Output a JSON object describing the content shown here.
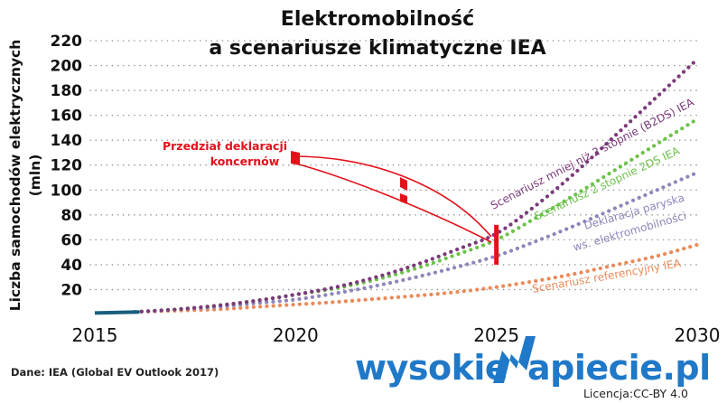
{
  "chart_data": {
    "type": "line",
    "title": [
      "Elektromobilność",
      "a scenariusze klimatyczne IEA"
    ],
    "ylabel": [
      "Liczba samochodów elektrycznych",
      "(mln)"
    ],
    "xlabel": "",
    "xlim": [
      2015,
      2030
    ],
    "ylim": [
      0,
      220
    ],
    "x_ticks": [
      2015,
      2020,
      2025,
      2030
    ],
    "y_ticks": [
      20,
      40,
      60,
      80,
      100,
      120,
      140,
      160,
      180,
      200,
      220
    ],
    "grid": true,
    "x": [
      2016,
      2017,
      2018,
      2019,
      2020,
      2021,
      2022,
      2023,
      2024,
      2025,
      2026,
      2027,
      2028,
      2029,
      2030
    ],
    "historical": {
      "x": [
        2015,
        2016
      ],
      "values": [
        1.2,
        2
      ],
      "color": "#1a5e7e"
    },
    "series": [
      {
        "label": "Scenariusz mniej niż 2 stopnie (B2DS) IEA",
        "color": "#7b3a7a",
        "values": [
          2,
          4,
          7,
          11,
          16,
          22,
          30,
          40,
          52,
          65,
          88,
          115,
          145,
          175,
          205
        ]
      },
      {
        "label": "Scenariusz 2 stopnie 2DS IEA",
        "color": "#6dc24a",
        "values": [
          2,
          4,
          7,
          11,
          16,
          21,
          28,
          37,
          48,
          60,
          78,
          97,
          117,
          137,
          157
        ]
      },
      {
        "label": [
          "Deklaracja paryska",
          "ws. elektromobilności"
        ],
        "color": "#8e86b8",
        "values": [
          2,
          4,
          6,
          9,
          12,
          17,
          23,
          30,
          38,
          47,
          59,
          72,
          86,
          100,
          114
        ]
      },
      {
        "label": "Scenariusz referencyjny IEA",
        "color": "#e88a5a",
        "values": [
          2,
          3,
          4,
          6,
          8,
          10,
          12.5,
          15,
          18,
          22,
          27,
          33,
          40,
          47,
          56
        ]
      }
    ],
    "annotation": {
      "label": [
        "Przedział deklaracji",
        "koncernów"
      ],
      "color": "#e4101a",
      "range_min": 40,
      "range_max": 72,
      "year": 2025
    }
  },
  "footer": {
    "source": "Dane: IEA (Global EV Outlook 2017)",
    "logo_left": "wysokie",
    "logo_right": "apiecie.pl",
    "license": "Licencja:CC-BY 4.0"
  }
}
